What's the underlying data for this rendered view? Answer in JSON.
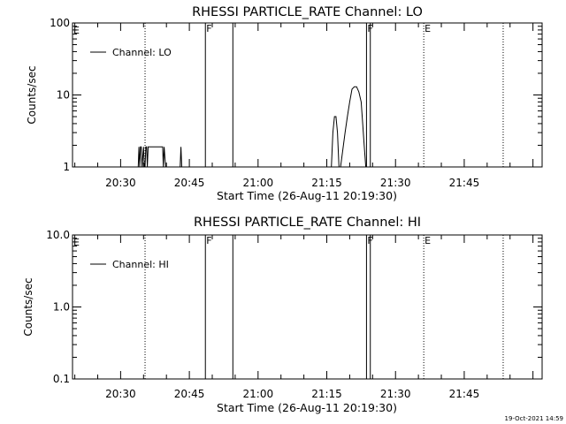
{
  "chart_data": [
    {
      "type": "line",
      "title": "RHESSI PARTICLE_RATE Channel: LO",
      "xlabel": "Start Time (26-Aug-11 20:19:30)",
      "ylabel": "Counts/sec",
      "xscale": "time",
      "xlim": [
        "20:19:30",
        "22:02:00"
      ],
      "x_ticks": [
        "20:30",
        "20:45",
        "21:00",
        "21:15",
        "21:30",
        "21:45"
      ],
      "yscale": "log",
      "ylim": [
        1,
        100
      ],
      "y_ticks": [
        "1",
        "10",
        "100"
      ],
      "grid": false,
      "legend_position": "top-left",
      "series": [
        {
          "name": "Channel: LO",
          "color": "#000000",
          "x": [
            "20:33:50",
            "20:34:00",
            "20:34:10",
            "20:34:20",
            "20:34:30",
            "20:34:40",
            "20:35:00",
            "20:35:10",
            "20:35:20",
            "20:35:30",
            "20:35:40",
            "20:35:50",
            "20:36:00",
            "20:36:20",
            "20:36:30",
            "20:36:50",
            "20:38:50",
            "20:39:10",
            "20:39:20",
            "20:39:30",
            "20:39:50",
            "20:43:00",
            "20:43:10",
            "20:43:20",
            "21:16:00",
            "21:16:20",
            "21:16:40",
            "21:17:00",
            "21:17:20",
            "21:17:40",
            "21:18:00",
            "21:19:00",
            "21:19:30",
            "21:20:00",
            "21:20:30",
            "21:21:00",
            "21:21:30",
            "21:22:00",
            "21:22:30",
            "21:22:50",
            "21:23:10",
            "21:23:30",
            "21:23:40"
          ],
          "y": [
            1,
            1.9,
            1,
            1.9,
            1.9,
            1,
            1.9,
            1,
            1,
            1.9,
            1.9,
            1,
            1.9,
            1.9,
            1.9,
            1.9,
            1.9,
            1.9,
            1,
            1.9,
            1,
            1,
            1.9,
            1,
            1,
            3,
            5,
            5,
            3,
            1,
            1,
            3,
            5,
            8,
            12,
            13,
            13,
            11,
            8,
            4,
            2,
            1,
            1
          ]
        }
      ],
      "event_markers": [
        {
          "x": "20:35:20",
          "label": "",
          "style": "dotted"
        },
        {
          "x": "20:48:30",
          "label": "F",
          "style": "solid"
        },
        {
          "x": "20:54:30",
          "label": "",
          "style": "solid"
        },
        {
          "x": "21:23:40",
          "label": "F",
          "style": "solid"
        },
        {
          "x": "21:24:30",
          "label": "",
          "style": "solid"
        },
        {
          "x": "21:36:10",
          "label": "E",
          "style": "dotted"
        },
        {
          "x": "21:53:30",
          "label": "",
          "style": "dotted"
        }
      ],
      "left_edge_label": "E"
    },
    {
      "type": "line",
      "title": "RHESSI PARTICLE_RATE Channel: HI",
      "xlabel": "Start Time (26-Aug-11 20:19:30)",
      "ylabel": "Counts/sec",
      "xscale": "time",
      "xlim": [
        "20:19:30",
        "22:02:00"
      ],
      "x_ticks": [
        "20:30",
        "20:45",
        "21:00",
        "21:15",
        "21:30",
        "21:45"
      ],
      "yscale": "log",
      "ylim": [
        0.1,
        10
      ],
      "y_ticks": [
        "0.1",
        "1.0",
        "10.0"
      ],
      "grid": false,
      "legend_position": "top-left",
      "series": [
        {
          "name": "Channel: HI",
          "color": "#000000",
          "x": [],
          "y": []
        }
      ],
      "event_markers": [
        {
          "x": "20:35:20",
          "label": "",
          "style": "dotted"
        },
        {
          "x": "20:48:30",
          "label": "F",
          "style": "solid"
        },
        {
          "x": "20:54:30",
          "label": "",
          "style": "solid"
        },
        {
          "x": "21:23:40",
          "label": "F",
          "style": "solid"
        },
        {
          "x": "21:24:30",
          "label": "",
          "style": "solid"
        },
        {
          "x": "21:36:10",
          "label": "E",
          "style": "dotted"
        },
        {
          "x": "21:53:30",
          "label": "",
          "style": "dotted"
        }
      ],
      "left_edge_label": "E"
    }
  ],
  "footer": {
    "timestamp": "19-Oct-2021 14:59"
  }
}
